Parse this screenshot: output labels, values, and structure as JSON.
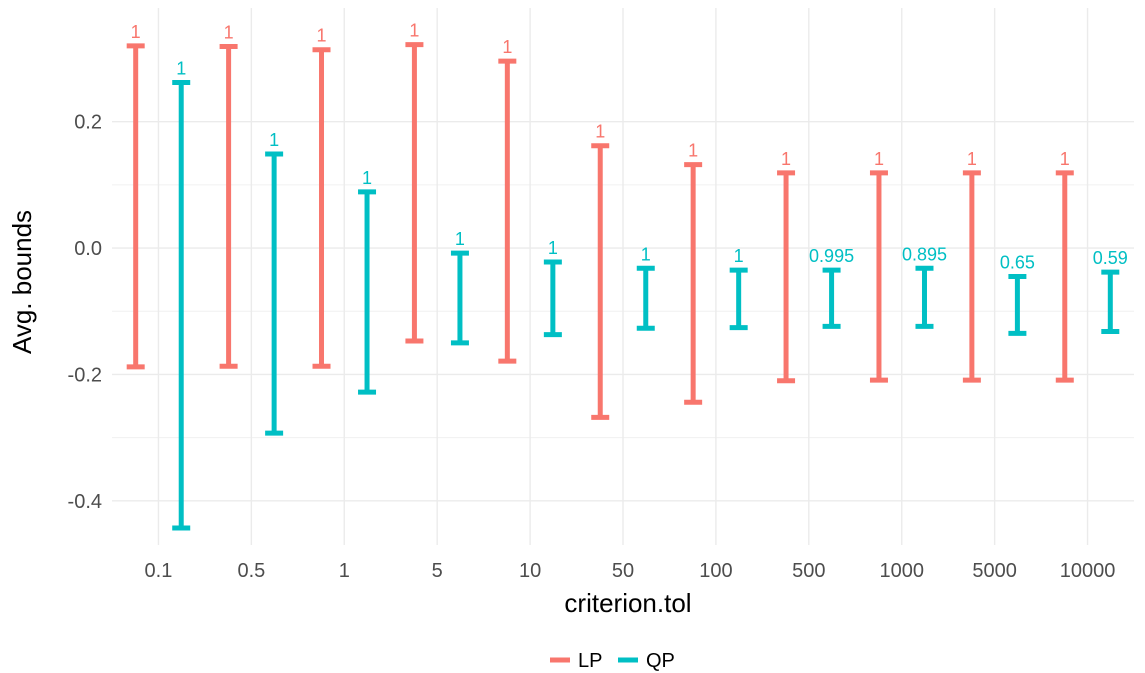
{
  "chart_data": {
    "type": "errorbar",
    "xlabel": "criterion.tol",
    "ylabel": "Avg. bounds",
    "categories": [
      "0.1",
      "0.5",
      "1",
      "5",
      "10",
      "50",
      "100",
      "500",
      "1000",
      "5000",
      "10000"
    ],
    "ylim": [
      -0.47,
      0.38
    ],
    "y_ticks": [
      0.2,
      0.0,
      -0.2,
      -0.4
    ],
    "y_tick_labels": [
      "0.2",
      "0.0",
      "-0.2",
      "-0.4"
    ],
    "grid": true,
    "legend_position": "bottom",
    "series": [
      {
        "name": "LP",
        "color": "#F8766D",
        "lower": [
          -0.188,
          -0.187,
          -0.187,
          -0.147,
          -0.179,
          -0.268,
          -0.244,
          -0.21,
          -0.209,
          -0.209,
          -0.209
        ],
        "upper": [
          0.32,
          0.319,
          0.314,
          0.322,
          0.296,
          0.162,
          0.132,
          0.119,
          0.119,
          0.119,
          0.119
        ],
        "labels": [
          "1",
          "1",
          "1",
          "1",
          "1",
          "1",
          "1",
          "1",
          "1",
          "1",
          "1"
        ]
      },
      {
        "name": "QP",
        "color": "#00BFC4",
        "lower": [
          -0.443,
          -0.293,
          -0.228,
          -0.15,
          -0.137,
          -0.127,
          -0.126,
          -0.124,
          -0.124,
          -0.135,
          -0.132
        ],
        "upper": [
          0.262,
          0.149,
          0.089,
          -0.008,
          -0.022,
          -0.032,
          -0.035,
          -0.035,
          -0.032,
          -0.045,
          -0.038
        ],
        "labels": [
          "1",
          "1",
          "1",
          "1",
          "1",
          "1",
          "1",
          "0.995",
          "0.895",
          "0.65",
          "0.59"
        ]
      }
    ]
  }
}
